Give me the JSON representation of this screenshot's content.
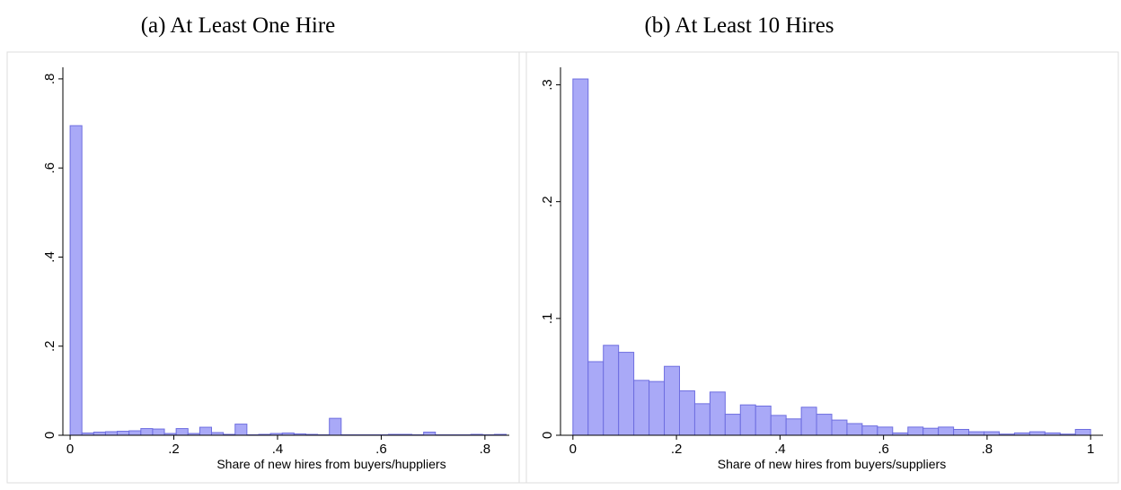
{
  "chart_data": [
    {
      "type": "histogram",
      "title": "(a) At Least One Hire",
      "xlabel": "Share of new hires from buyers/huppliers",
      "color": "#a9a9f7",
      "edgecolor": "#6e6ee0",
      "bins": [
        0,
        0.0227,
        0.0455,
        0.0682,
        0.0909,
        0.1136,
        0.1364,
        0.1591,
        0.1818,
        0.2045,
        0.2273,
        0.25,
        0.2727,
        0.2955,
        0.3182,
        0.3409,
        0.3636,
        0.3864,
        0.4091,
        0.4318,
        0.4545,
        0.4773,
        0.5,
        0.5227,
        0.5455,
        0.5682,
        0.5909,
        0.6136,
        0.6364,
        0.6591,
        0.6818,
        0.7045,
        0.7273,
        0.75,
        0.7727,
        0.7955,
        0.8182,
        0.8409
      ],
      "values": [
        0.695,
        0.005,
        0.007,
        0.008,
        0.009,
        0.01,
        0.015,
        0.014,
        0.004,
        0.015,
        0.004,
        0.018,
        0.006,
        0.002,
        0.025,
        0.001,
        0.002,
        0.004,
        0.005,
        0.003,
        0.002,
        0.001,
        0.038,
        0.001,
        0.001,
        0.001,
        0.001,
        0.002,
        0.002,
        0.001,
        0.007,
        0.001,
        0.001,
        0.001,
        0.002,
        0.001,
        0.002
      ],
      "xlim": [
        -0.014,
        0.847
      ],
      "ylim": [
        0,
        0.826
      ],
      "xticks": [
        0,
        {
          "value": 0.2,
          "label": ".2"
        },
        {
          "value": 0.4,
          "label": ".4"
        },
        {
          "value": 0.6,
          "label": ".6"
        },
        {
          "value": 0.8,
          "label": ".8"
        }
      ],
      "yticks": [
        0,
        {
          "value": 0.2,
          "label": ".2"
        },
        {
          "value": 0.4,
          "label": ".4"
        },
        {
          "value": 0.6,
          "label": ".6"
        },
        {
          "value": 0.8,
          "label": ".8"
        }
      ]
    },
    {
      "type": "histogram",
      "title": "(b) At Least 10 Hires",
      "xlabel": "Share of new hires from buyers/suppliers",
      "color": "#a9a9f7",
      "edgecolor": "#6e6ee0",
      "bins": [
        0,
        0.0294,
        0.0588,
        0.0882,
        0.1176,
        0.1471,
        0.1765,
        0.2059,
        0.2353,
        0.2647,
        0.2941,
        0.3235,
        0.3529,
        0.3824,
        0.4118,
        0.4412,
        0.4706,
        0.5,
        0.5294,
        0.5588,
        0.5882,
        0.6176,
        0.6471,
        0.6765,
        0.7059,
        0.7353,
        0.7647,
        0.7941,
        0.8235,
        0.8529,
        0.8824,
        0.9118,
        0.9412,
        0.9706,
        1
      ],
      "values": [
        0.305,
        0.063,
        0.077,
        0.071,
        0.047,
        0.046,
        0.059,
        0.038,
        0.027,
        0.037,
        0.018,
        0.026,
        0.025,
        0.017,
        0.014,
        0.024,
        0.018,
        0.013,
        0.01,
        0.008,
        0.007,
        0.002,
        0.007,
        0.006,
        0.007,
        0.005,
        0.003,
        0.003,
        0.001,
        0.002,
        0.003,
        0.002,
        0.001,
        0.005
      ],
      "xlim": [
        -0.024,
        1.024
      ],
      "ylim": [
        0,
        0.315
      ],
      "xticks": [
        0,
        {
          "value": 0.2,
          "label": ".2"
        },
        {
          "value": 0.4,
          "label": ".4"
        },
        {
          "value": 0.6,
          "label": ".6"
        },
        {
          "value": 0.8,
          "label": ".8"
        },
        1
      ],
      "yticks": [
        0,
        {
          "value": 0.1,
          "label": ".1"
        },
        {
          "value": 0.2,
          "label": ".2"
        },
        {
          "value": 0.3,
          "label": ".3"
        }
      ]
    }
  ]
}
